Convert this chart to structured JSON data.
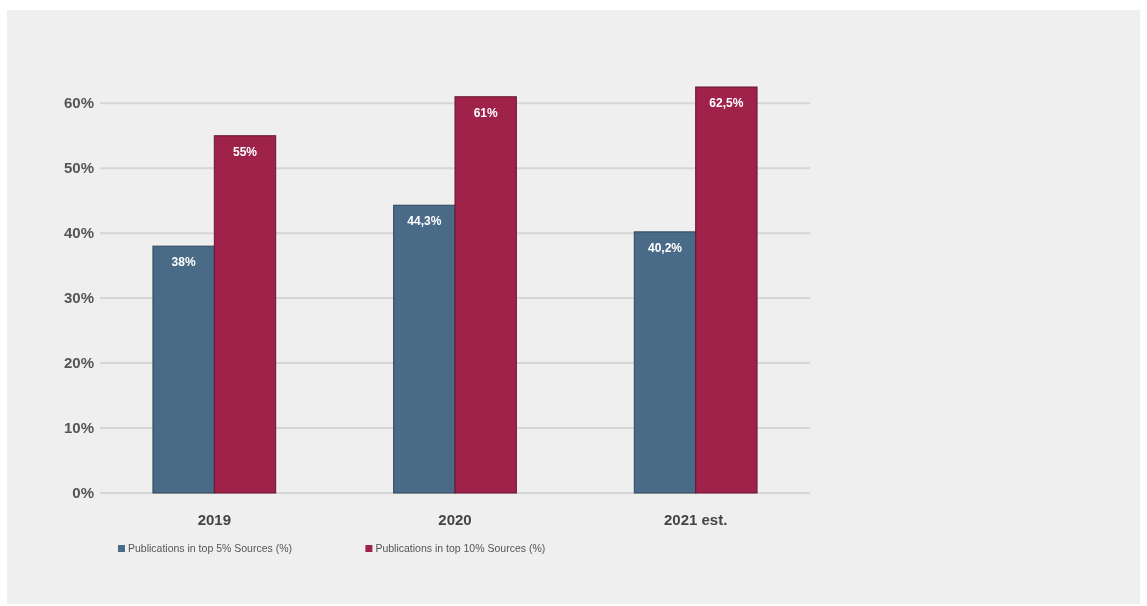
{
  "chart_data": {
    "type": "bar",
    "categories": [
      "2019",
      "2020",
      "2021 est."
    ],
    "series": [
      {
        "name": "Publications in top 5% Sources (%)",
        "color": "#4a6b88",
        "values": [
          38,
          44.3,
          40.2
        ],
        "value_labels": [
          "38%",
          "44,3%",
          "40,2%"
        ]
      },
      {
        "name": "Publications in top 10% Sources (%)",
        "color": "#9e2249",
        "values": [
          55,
          61,
          62.5
        ],
        "value_labels": [
          "55%",
          "61%",
          "62,5%"
        ]
      }
    ],
    "ylim": [
      0,
      62.5
    ],
    "yticks": [
      {
        "value": 0,
        "label": "0%"
      },
      {
        "value": 10,
        "label": "10%"
      },
      {
        "value": 20,
        "label": "20%"
      },
      {
        "value": 30,
        "label": "30%"
      },
      {
        "value": 40,
        "label": "40%"
      },
      {
        "value": 50,
        "label": "50%"
      },
      {
        "value": 60,
        "label": "60%"
      }
    ],
    "grid": "y",
    "legend": "bottom"
  }
}
